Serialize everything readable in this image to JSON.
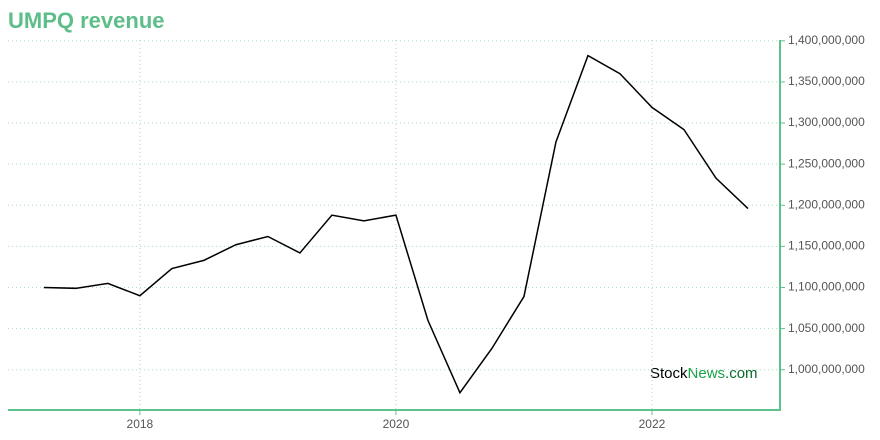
{
  "chart_data": {
    "type": "line",
    "title": "UMPQ revenue",
    "x": [
      2017.25,
      2017.5,
      2017.75,
      2018,
      2018.25,
      2018.5,
      2018.75,
      2019,
      2019.25,
      2019.5,
      2019.75,
      2020,
      2020.25,
      2020.5,
      2020.75,
      2021,
      2021.25,
      2021.5,
      2021.75,
      2022,
      2022.25,
      2022.5,
      2022.75
    ],
    "series": [
      {
        "name": "UMPQ revenue",
        "color": "#000000",
        "values": [
          1100000000,
          1099000000,
          1105000000,
          1090000000,
          1123000000,
          1133000000,
          1152000000,
          1162000000,
          1142000000,
          1188000000,
          1181000000,
          1188000000,
          1060000000,
          972000000,
          1026000000,
          1089000000,
          1277000000,
          1382000000,
          1360000000,
          1319000000,
          1292000000,
          1233000000,
          1196000000
        ]
      }
    ],
    "xlim": [
      2016.97,
      2023
    ],
    "xticks": [
      2018,
      2020,
      2022
    ],
    "ylim": [
      951000000,
      1401000000
    ],
    "yticks": [
      {
        "value": 1000000000,
        "label": "1,000,000,000"
      },
      {
        "value": 1050000000,
        "label": "1,050,000,000"
      },
      {
        "value": 1100000000,
        "label": "1,100,000,000"
      },
      {
        "value": 1150000000,
        "label": "1,150,000,000"
      },
      {
        "value": 1200000000,
        "label": "1,200,000,000"
      },
      {
        "value": 1250000000,
        "label": "1,250,000,000"
      },
      {
        "value": 1300000000,
        "label": "1,300,000,000"
      },
      {
        "value": 1350000000,
        "label": "1,350,000,000"
      },
      {
        "value": 1400000000,
        "label": "1,400,000,000"
      }
    ],
    "grid": true,
    "axis_color": "#5dc38a",
    "watermark": [
      "Stock",
      "News",
      ".com"
    ]
  }
}
